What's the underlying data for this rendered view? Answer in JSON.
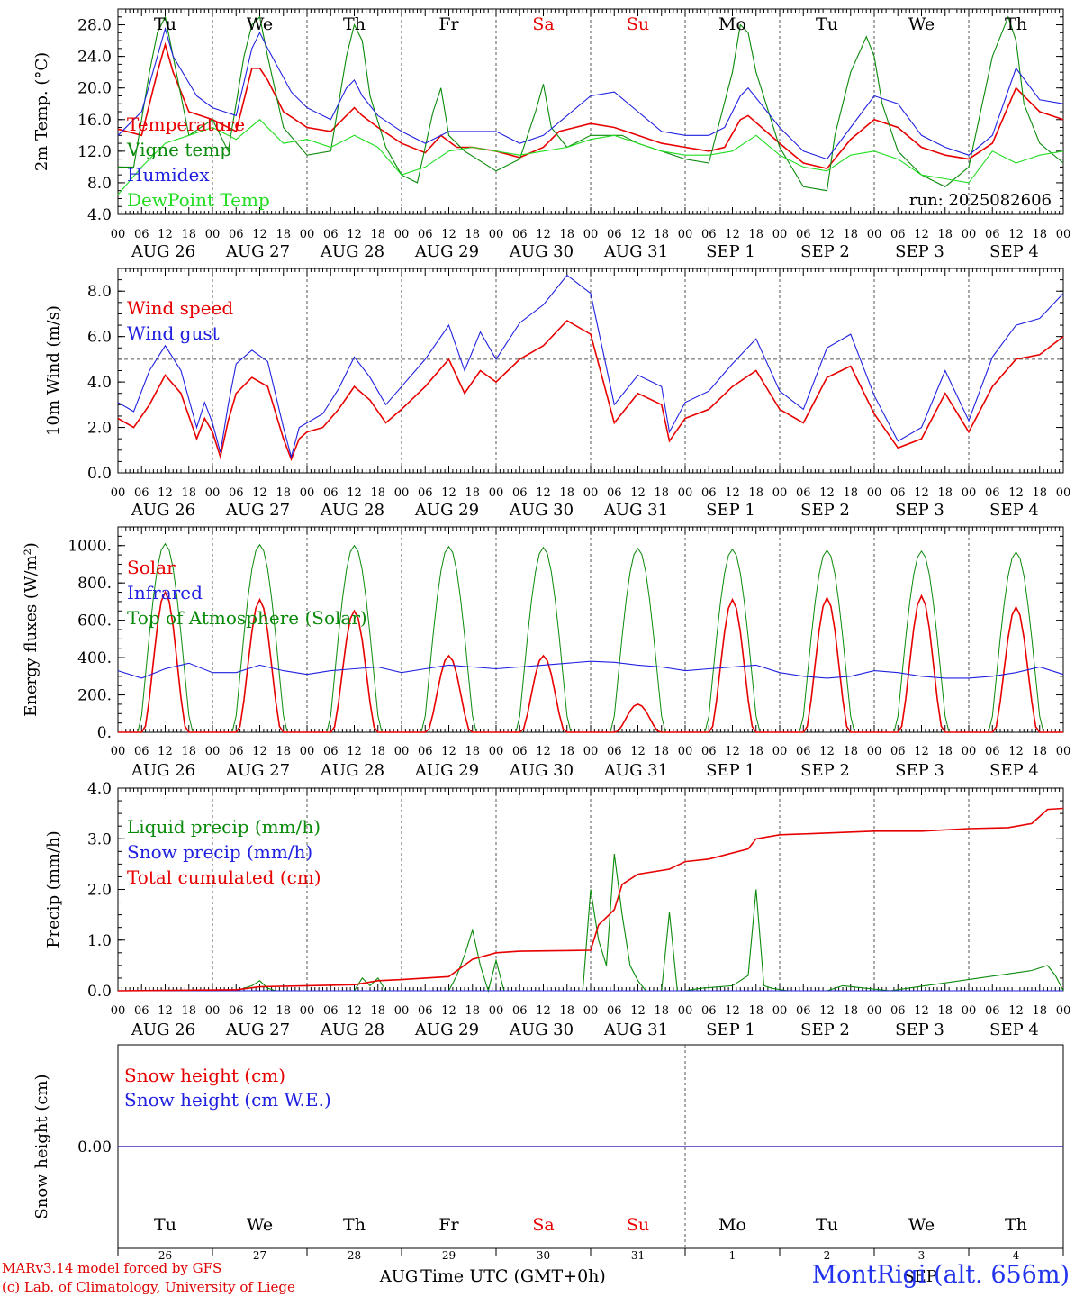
{
  "colors": {
    "red": "#e80000",
    "blue": "#2020e0",
    "green": "#0a8a0a",
    "lightgreen": "#22dd22",
    "grey": "#555555"
  },
  "run": "run: 2025082606",
  "hour_ticks": [
    "00",
    "06",
    "12",
    "18"
  ],
  "end_tick": "00",
  "date_labels": [
    "AUG 26",
    "AUG 27",
    "AUG 28",
    "AUG 29",
    "AUG 30",
    "AUG 31",
    "SEP  1",
    "SEP  2",
    "SEP  3",
    "SEP  4"
  ],
  "weekdays": [
    {
      "label": "Tu",
      "weekend": false
    },
    {
      "label": "We",
      "weekend": false
    },
    {
      "label": "Th",
      "weekend": false
    },
    {
      "label": "Fr",
      "weekend": false
    },
    {
      "label": "Sa",
      "weekend": true
    },
    {
      "label": "Su",
      "weekend": true
    },
    {
      "label": "Mo",
      "weekend": false
    },
    {
      "label": "Tu",
      "weekend": false
    },
    {
      "label": "We",
      "weekend": false
    },
    {
      "label": "Th",
      "weekend": false
    }
  ],
  "day_numbers": [
    "26",
    "27",
    "28",
    "29",
    "30",
    "31",
    "1",
    "2",
    "3",
    "4"
  ],
  "bottom_month_aug": "AUG",
  "bottom_month_sep": "SEP",
  "xlabel": "Time UTC (GMT+0h)",
  "credit_line1": "MARv3.14 model forced by GFS",
  "credit_line2": "(c) Lab. of Climatology, University of Liege",
  "station": "MontRigi (alt. 656m)",
  "chart_data": [
    {
      "type": "line",
      "ylabel": "2m Temp. (°C)",
      "ylim": [
        4,
        30
      ],
      "yticks": [
        "4.0",
        "8.0",
        "12.0",
        "16.0",
        "20.0",
        "24.0",
        "28.0"
      ],
      "x_unit": "hours since AUG 26 00 UTC",
      "legend": [
        "Temperature",
        "Vigne temp",
        "Humidex",
        "DewPoint Temp"
      ],
      "series": [
        {
          "name": "Temperature",
          "color": "#e80000",
          "x": [
            0,
            6,
            10,
            12,
            14,
            18,
            24,
            30,
            34,
            36,
            38,
            42,
            48,
            54,
            60,
            62,
            66,
            72,
            78,
            82,
            86,
            90,
            96,
            102,
            108,
            112,
            120,
            126,
            132,
            138,
            144,
            150,
            154,
            158,
            160,
            168,
            174,
            180,
            186,
            192,
            198,
            204,
            210,
            216,
            222,
            228,
            234,
            240
          ],
          "y": [
            14.8,
            14.0,
            22,
            25.5,
            22,
            17.0,
            16.0,
            14.5,
            22.5,
            22.5,
            21,
            17.0,
            15.0,
            14.5,
            17.5,
            16.5,
            15.0,
            13.0,
            11.8,
            14.0,
            12.5,
            12.5,
            12.0,
            11.2,
            12.5,
            14.5,
            15.5,
            15.0,
            14.0,
            13.0,
            12.5,
            12.0,
            12.5,
            16.0,
            16.5,
            13.0,
            10.5,
            9.8,
            13.5,
            16.0,
            15.0,
            12.5,
            11.5,
            11.0,
            13.0,
            20.0,
            17.0,
            16.0
          ]
        },
        {
          "name": "Vigne temp",
          "color": "#0a8a0a",
          "x": [
            0,
            4,
            8,
            10,
            12,
            14,
            18,
            24,
            28,
            32,
            34,
            36,
            38,
            42,
            48,
            54,
            58,
            60,
            62,
            64,
            68,
            72,
            76,
            80,
            82,
            84,
            88,
            96,
            102,
            106,
            108,
            110,
            114,
            120,
            128,
            132,
            138,
            144,
            150,
            156,
            158,
            160,
            162,
            168,
            174,
            180,
            182,
            186,
            190,
            192,
            194,
            198,
            204,
            210,
            216,
            222,
            226,
            228,
            230,
            234,
            240
          ],
          "y": [
            10.0,
            10.0,
            22,
            27,
            29,
            24,
            14.0,
            16.0,
            12.0,
            24,
            28,
            29,
            24,
            15.0,
            11.5,
            12.0,
            24,
            28,
            26,
            19,
            12.5,
            9.0,
            8.0,
            17,
            20,
            14,
            12.0,
            9.5,
            11.0,
            17,
            20.5,
            15,
            12.5,
            14.0,
            14.0,
            13.0,
            12.0,
            11.0,
            10.5,
            22,
            28,
            27,
            22,
            12.5,
            7.5,
            7.0,
            14,
            22,
            26.5,
            24,
            18,
            12.0,
            9.0,
            7.5,
            10.0,
            24,
            29,
            26,
            18,
            13.0,
            10.5
          ]
        },
        {
          "name": "Humidex",
          "color": "#2020e0",
          "x": [
            0,
            6,
            10,
            12,
            14,
            20,
            24,
            30,
            34,
            36,
            38,
            44,
            48,
            54,
            58,
            60,
            62,
            66,
            72,
            78,
            84,
            90,
            96,
            102,
            108,
            114,
            120,
            126,
            132,
            138,
            144,
            150,
            154,
            158,
            160,
            168,
            174,
            180,
            186,
            192,
            198,
            204,
            210,
            216,
            222,
            228,
            234,
            240
          ],
          "y": [
            14.0,
            17.0,
            24,
            27.5,
            24,
            19,
            17.5,
            16.5,
            25,
            27,
            25,
            19.5,
            17.5,
            16.0,
            20,
            21,
            19,
            16.5,
            14.5,
            13.0,
            14.5,
            14.5,
            14.5,
            13.0,
            14.0,
            16.5,
            19.0,
            19.5,
            17.0,
            14.5,
            14.0,
            14.0,
            15.0,
            19,
            20,
            15.0,
            12.0,
            11.0,
            15.0,
            19.0,
            18.0,
            14.0,
            12.5,
            11.5,
            14.0,
            22.5,
            18.5,
            18.0
          ]
        },
        {
          "name": "DewPoint Temp",
          "color": "#22dd22",
          "x": [
            0,
            6,
            12,
            18,
            24,
            30,
            36,
            42,
            48,
            54,
            60,
            66,
            72,
            78,
            84,
            90,
            96,
            102,
            108,
            114,
            120,
            126,
            132,
            138,
            144,
            150,
            156,
            162,
            168,
            174,
            180,
            186,
            192,
            198,
            204,
            210,
            216,
            222,
            228,
            234,
            240
          ],
          "y": [
            6.5,
            10.0,
            13.0,
            14.0,
            15.0,
            13.5,
            16.0,
            13.0,
            13.5,
            12.5,
            14.0,
            12.5,
            9.0,
            10.0,
            12.0,
            12.5,
            12.0,
            11.5,
            12.0,
            12.5,
            13.5,
            14.0,
            13.0,
            12.0,
            11.5,
            11.5,
            12.0,
            14.0,
            11.5,
            10.0,
            9.5,
            11.5,
            12.0,
            11.0,
            9.0,
            8.5,
            8.0,
            12.0,
            10.5,
            11.5,
            12.0
          ]
        }
      ]
    },
    {
      "type": "line",
      "ylabel": "10m Wind (m/s)",
      "ylim": [
        0,
        9
      ],
      "yticks": [
        "0.0",
        "2.0",
        "4.0",
        "6.0",
        "8.0"
      ],
      "reference_line": 5.0,
      "legend": [
        "Wind speed",
        "Wind gust"
      ],
      "series": [
        {
          "name": "Wind speed",
          "color": "#e80000",
          "x": [
            0,
            4,
            8,
            12,
            16,
            20,
            22,
            24,
            26,
            28,
            30,
            34,
            38,
            42,
            44,
            46,
            48,
            52,
            56,
            60,
            64,
            68,
            72,
            78,
            84,
            88,
            92,
            96,
            102,
            108,
            114,
            120,
            126,
            132,
            138,
            140,
            144,
            150,
            156,
            162,
            168,
            174,
            180,
            186,
            192,
            198,
            204,
            210,
            216,
            222,
            228,
            234,
            240
          ],
          "y": [
            2.4,
            2.0,
            3.0,
            4.3,
            3.5,
            1.5,
            2.4,
            1.8,
            0.7,
            2.3,
            3.5,
            4.2,
            3.8,
            1.5,
            0.6,
            1.5,
            1.8,
            2.0,
            2.8,
            3.8,
            3.2,
            2.2,
            2.8,
            3.8,
            5.0,
            3.5,
            4.5,
            4.0,
            5.0,
            5.6,
            6.7,
            6.1,
            2.2,
            3.5,
            3.0,
            1.4,
            2.4,
            2.8,
            3.8,
            4.5,
            2.8,
            2.2,
            4.2,
            4.7,
            2.6,
            1.1,
            1.5,
            3.5,
            1.8,
            3.8,
            5.0,
            5.2,
            6.0
          ]
        },
        {
          "name": "Wind gust",
          "color": "#2020e0",
          "x": [
            0,
            4,
            8,
            12,
            16,
            20,
            22,
            24,
            26,
            28,
            30,
            34,
            38,
            42,
            44,
            46,
            48,
            52,
            56,
            60,
            64,
            68,
            72,
            78,
            84,
            88,
            92,
            96,
            102,
            108,
            114,
            120,
            126,
            132,
            138,
            140,
            144,
            150,
            156,
            162,
            168,
            174,
            180,
            186,
            192,
            198,
            204,
            210,
            216,
            222,
            228,
            234,
            240
          ],
          "y": [
            3.1,
            2.7,
            4.5,
            5.6,
            4.5,
            2.0,
            3.1,
            2.2,
            0.9,
            3.0,
            4.8,
            5.4,
            4.9,
            2.0,
            0.7,
            2.0,
            2.2,
            2.6,
            3.7,
            5.1,
            4.2,
            3.0,
            3.8,
            5.0,
            6.5,
            4.5,
            6.2,
            5.0,
            6.6,
            7.4,
            8.7,
            7.9,
            3.0,
            4.3,
            3.8,
            1.8,
            3.1,
            3.6,
            4.8,
            5.9,
            3.6,
            2.8,
            5.5,
            6.1,
            3.4,
            1.4,
            2.0,
            4.5,
            2.3,
            5.1,
            6.5,
            6.8,
            7.9
          ]
        }
      ]
    },
    {
      "type": "line",
      "ylabel": "Energy fluxes (W/m²)",
      "ylim": [
        0,
        1100
      ],
      "yticks": [
        "0.",
        "200.",
        "400.",
        "600.",
        "800.",
        "1000."
      ],
      "legend": [
        "Solar",
        "Infrared",
        "Top of Atmosphere (Solar)"
      ],
      "toa_daily_peak": [
        1010,
        1005,
        1000,
        995,
        990,
        985,
        980,
        975,
        970,
        965
      ],
      "solar_daily_peak": [
        750,
        710,
        650,
        410,
        410,
        150,
        710,
        720,
        730,
        670
      ],
      "series": [
        {
          "name": "Infrared",
          "color": "#2020e0",
          "x": [
            0,
            6,
            12,
            18,
            24,
            30,
            36,
            42,
            48,
            54,
            60,
            66,
            72,
            78,
            84,
            90,
            96,
            102,
            108,
            114,
            120,
            126,
            132,
            138,
            144,
            150,
            156,
            162,
            168,
            174,
            180,
            186,
            192,
            198,
            204,
            210,
            216,
            222,
            228,
            234,
            240
          ],
          "y": [
            330,
            290,
            340,
            370,
            320,
            320,
            360,
            330,
            310,
            330,
            340,
            350,
            320,
            340,
            360,
            350,
            340,
            350,
            360,
            370,
            380,
            375,
            360,
            350,
            330,
            340,
            350,
            360,
            320,
            300,
            290,
            300,
            330,
            320,
            300,
            290,
            290,
            300,
            320,
            350,
            310
          ]
        }
      ]
    },
    {
      "type": "line",
      "ylabel": "Precip (mm/h)",
      "ylim": [
        0,
        4
      ],
      "yticks": [
        "0.0",
        "1.0",
        "2.0",
        "3.0",
        "4.0"
      ],
      "legend": [
        "Liquid precip (mm/h)",
        "Snow precip (mm/h)",
        "Total cumulated (cm)"
      ],
      "series": [
        {
          "name": "Liquid precip (mm/h)",
          "color": "#0a8a0a",
          "x": [
            0,
            30,
            34,
            36,
            38,
            40,
            60,
            62,
            64,
            66,
            68,
            84,
            86,
            88,
            90,
            92,
            94,
            96,
            98,
            100,
            102,
            118,
            120,
            122,
            124,
            126,
            128,
            130,
            132,
            134,
            136,
            138,
            140,
            142,
            144,
            148,
            156,
            160,
            162,
            164,
            166,
            170,
            180,
            184,
            196,
            232,
            236,
            238,
            240
          ],
          "y": [
            0,
            0,
            0.1,
            0.2,
            0.05,
            0,
            0,
            0.25,
            0.1,
            0.25,
            0,
            0,
            0.3,
            0.7,
            1.2,
            0.5,
            0,
            0.6,
            0,
            0,
            0,
            0,
            2.0,
            1.0,
            0.5,
            2.7,
            1.5,
            0.5,
            0.2,
            0,
            0,
            0,
            1.55,
            0,
            0,
            0.05,
            0.1,
            0.3,
            2.0,
            0.1,
            0.05,
            0,
            0,
            0.1,
            0,
            0.4,
            0.5,
            0.3,
            0
          ]
        },
        {
          "name": "Snow precip (mm/h)",
          "color": "#2020e0",
          "x": [
            0,
            240
          ],
          "y": [
            0,
            0
          ]
        },
        {
          "name": "Total cumulated (cm)",
          "color": "#e80000",
          "x": [
            0,
            30,
            36,
            48,
            60,
            66,
            72,
            84,
            90,
            96,
            102,
            120,
            122,
            126,
            128,
            132,
            140,
            144,
            150,
            160,
            162,
            168,
            176,
            192,
            204,
            216,
            226,
            232,
            236,
            240
          ],
          "y": [
            0,
            0.02,
            0.08,
            0.1,
            0.12,
            0.2,
            0.22,
            0.28,
            0.62,
            0.75,
            0.78,
            0.8,
            1.3,
            1.6,
            2.1,
            2.3,
            2.4,
            2.55,
            2.6,
            2.8,
            3.0,
            3.08,
            3.1,
            3.15,
            3.15,
            3.2,
            3.22,
            3.3,
            3.58,
            3.6
          ]
        }
      ]
    },
    {
      "type": "line",
      "ylabel": "Snow height (cm)",
      "yticks": [
        "0.00"
      ],
      "legend": [
        "Snow height (cm)",
        "Snow height (cm W.E.)"
      ],
      "series": [
        {
          "name": "Snow height (cm)",
          "color": "#e80000",
          "x": [
            0,
            240
          ],
          "y": [
            0,
            0
          ]
        },
        {
          "name": "Snow height (cm W.E.)",
          "color": "#2020e0",
          "x": [
            0,
            240
          ],
          "y": [
            0,
            0
          ]
        }
      ]
    }
  ]
}
